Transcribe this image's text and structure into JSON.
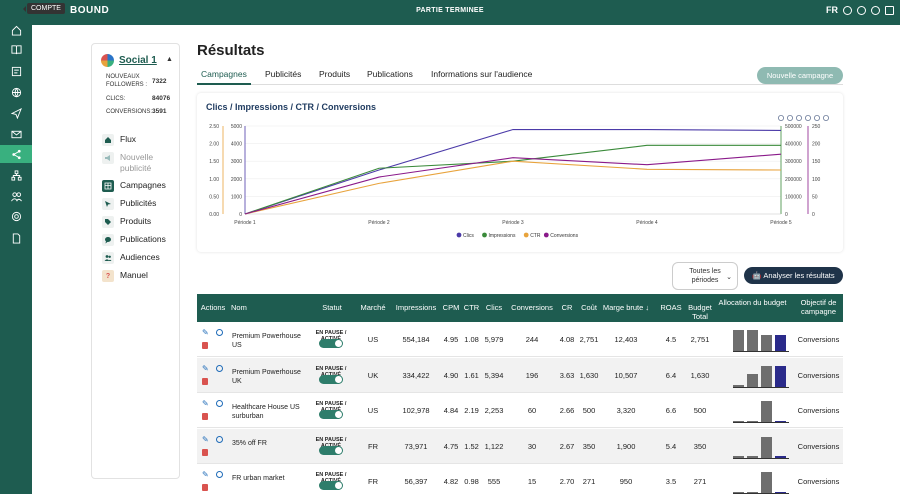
{
  "topbar": {
    "brand": "BOUND",
    "status": "PARTIE TERMINEE",
    "lang": "FR",
    "tooltip": "COMPTE"
  },
  "sidebar": {
    "name": "Social 1",
    "stats": [
      {
        "label": "NOUVEAUX FOLLOWERS :",
        "value": "7322"
      },
      {
        "label": "CLICS:",
        "value": "84076"
      },
      {
        "label": "CONVERSIONS:",
        "value": "3591"
      }
    ],
    "menu": [
      {
        "label": "Flux",
        "icon": "home-icon"
      },
      {
        "label": "Nouvelle publicité",
        "icon": "megaphone-icon"
      },
      {
        "label": "Campagnes",
        "icon": "table-icon"
      },
      {
        "label": "Publicités",
        "icon": "cursor-icon"
      },
      {
        "label": "Produits",
        "icon": "tag-icon"
      },
      {
        "label": "Publications",
        "icon": "chat-icon"
      },
      {
        "label": "Audiences",
        "icon": "people-icon"
      },
      {
        "label": "Manuel",
        "icon": "question-icon"
      }
    ]
  },
  "page": {
    "title": "Résultats",
    "new_campaign": "Nouvelle campagne"
  },
  "tabs": [
    "Campagnes",
    "Publicités",
    "Produits",
    "Publications",
    "Informations sur l'audience"
  ],
  "controls": {
    "period_line1": "Toutes les",
    "period_line2": "périodes",
    "analyse": "Analyser les résultats"
  },
  "chart_data": {
    "type": "line",
    "title": "Clics / Impressions / CTR / Conversions",
    "categories": [
      "Période 1",
      "Période 2",
      "Période 3",
      "Période 4",
      "Période 5"
    ],
    "axes": {
      "ctr": {
        "ticks": [
          "2.50",
          "2.00",
          "1.50",
          "1.00",
          "0.50",
          "0.00"
        ],
        "min": 0,
        "max": 2.5
      },
      "clics": {
        "ticks": [
          "5000",
          "4000",
          "3000",
          "2000",
          "1000",
          "0"
        ],
        "min": 0,
        "max": 5000
      },
      "impressions": {
        "ticks": [
          "500000",
          "400000",
          "300000",
          "200000",
          "100000",
          "0"
        ],
        "min": 0,
        "max": 500000
      },
      "conversions": {
        "ticks": [
          "250",
          "200",
          "150",
          "100",
          "50",
          "0"
        ],
        "min": 0,
        "max": 250
      }
    },
    "series": [
      {
        "name": "Clics",
        "axis": "clics",
        "color": "#4b3aa8",
        "values": [
          0,
          2500,
          4800,
          4800,
          4750
        ]
      },
      {
        "name": "Impressions",
        "axis": "impressions",
        "color": "#3a8a3a",
        "values": [
          0,
          260000,
          300000,
          390000,
          390000
        ]
      },
      {
        "name": "CTR",
        "axis": "ctr",
        "color": "#e8a33c",
        "values": [
          0,
          0.87,
          1.5,
          1.27,
          1.25
        ]
      },
      {
        "name": "Conversions",
        "axis": "conversions",
        "color": "#8a1a8a",
        "values": [
          0,
          105,
          160,
          140,
          170
        ]
      }
    ],
    "legend": "bottom"
  },
  "table": {
    "headers": [
      "Actions",
      "Nom",
      "Statut",
      "Marché",
      "Impressions",
      "CPM",
      "CTR",
      "Clics",
      "Conversions",
      "CR",
      "Coût",
      "Marge brute ↓",
      "ROAS",
      "Budget Total",
      "Allocation du budget",
      "Objectif de campagne"
    ],
    "status_label": "EN PAUSE / ACTIVÉ",
    "rows": [
      {
        "name": "Premium Powerhouse US",
        "market": "US",
        "impressions": "554,184",
        "cpm": "4.95",
        "ctr": "1.08",
        "clics": "5,979",
        "conversions": "244",
        "cr": "4.08",
        "cost": "2,751",
        "margin": "12,403",
        "roas": "4.5",
        "budget": "2,751",
        "alloc": [
          0.8,
          0.8,
          0.6,
          0.6
        ],
        "objective": "Conversions"
      },
      {
        "name": "Premium Powerhouse UK",
        "market": "UK",
        "impressions": "334,422",
        "cpm": "4.90",
        "ctr": "1.61",
        "clics": "5,394",
        "conversions": "196",
        "cr": "3.63",
        "cost": "1,630",
        "margin": "10,507",
        "roas": "6.4",
        "budget": "1,630",
        "alloc": [
          0.05,
          0.5,
          0.8,
          0.8
        ],
        "objective": "Conversions"
      },
      {
        "name": "Healthcare House US surburban",
        "market": "US",
        "impressions": "102,978",
        "cpm": "4.84",
        "ctr": "2.19",
        "clics": "2,253",
        "conversions": "60",
        "cr": "2.66",
        "cost": "500",
        "margin": "3,320",
        "roas": "6.6",
        "budget": "500",
        "alloc": [
          0.05,
          0.05,
          0.8,
          0.05
        ],
        "objective": "Conversions"
      },
      {
        "name": "35% off FR",
        "market": "FR",
        "impressions": "73,971",
        "cpm": "4.75",
        "ctr": "1.52",
        "clics": "1,122",
        "conversions": "30",
        "cr": "2.67",
        "cost": "350",
        "margin": "1,900",
        "roas": "5.4",
        "budget": "350",
        "alloc": [
          0.05,
          0.05,
          0.8,
          0.05
        ],
        "objective": "Conversions"
      },
      {
        "name": "FR urban market",
        "market": "FR",
        "impressions": "56,397",
        "cpm": "4.82",
        "ctr": "0.98",
        "clics": "555",
        "conversions": "15",
        "cr": "2.70",
        "cost": "271",
        "margin": "950",
        "roas": "3.5",
        "budget": "271",
        "alloc": [
          0.05,
          0.05,
          0.8,
          0.05
        ],
        "objective": "Conversions"
      }
    ]
  }
}
